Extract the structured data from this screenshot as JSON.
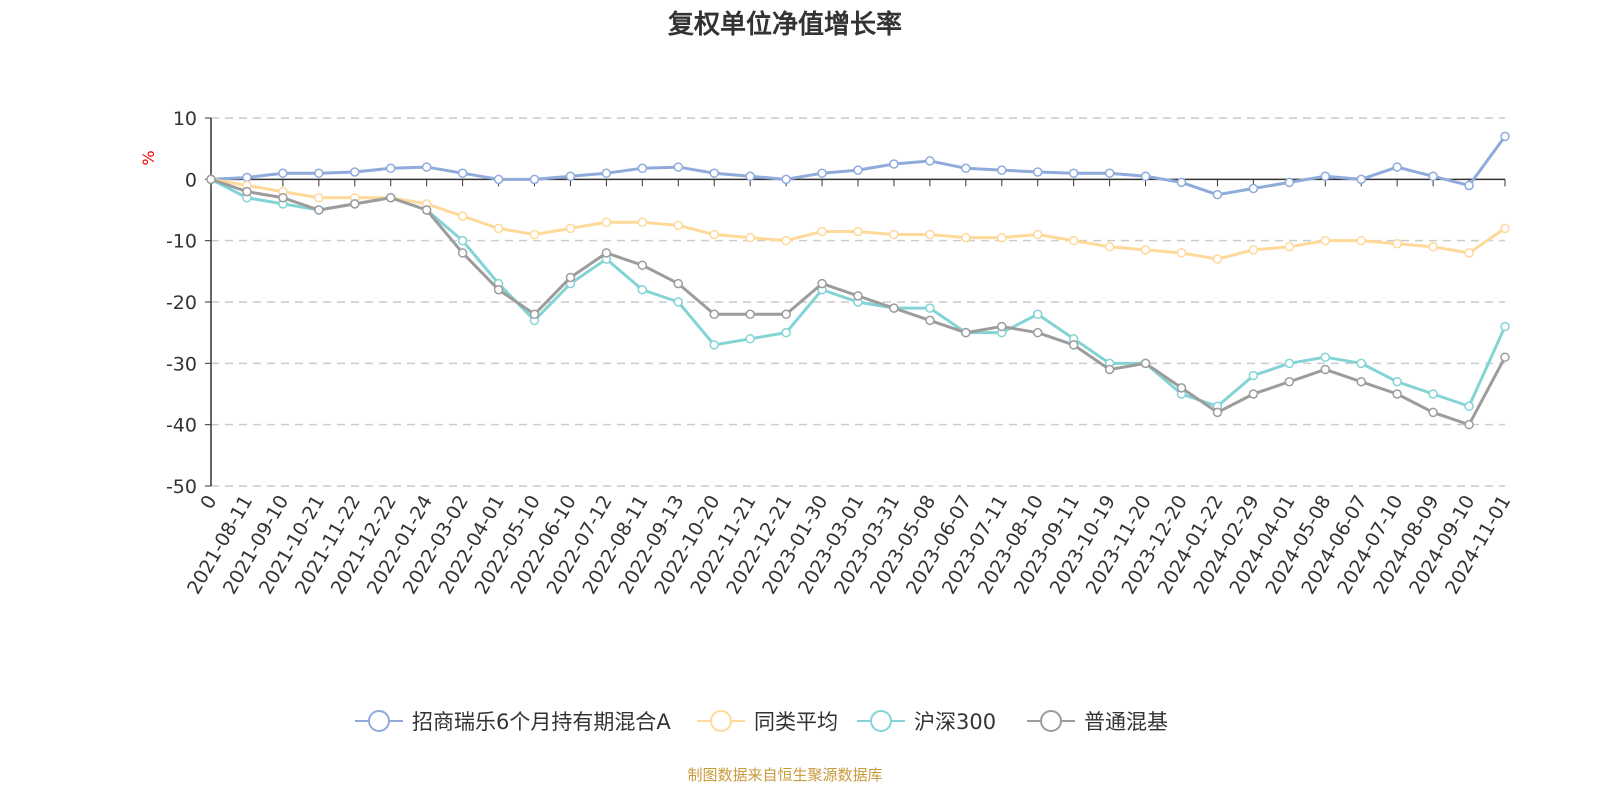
{
  "chart_data": {
    "type": "line",
    "title": "复权单位净值增长率",
    "ylabel": "%",
    "ylim": [
      -50,
      10
    ],
    "yticks": [
      10,
      0,
      -10,
      -20,
      -30,
      -40,
      -50
    ],
    "grid": true,
    "legend_position": "bottom",
    "x": [
      "0",
      "2021-08-11",
      "2021-09-10",
      "2021-10-21",
      "2021-11-22",
      "2021-12-22",
      "2022-01-24",
      "2022-03-02",
      "2022-04-01",
      "2022-05-10",
      "2022-06-10",
      "2022-07-12",
      "2022-08-11",
      "2022-09-13",
      "2022-10-20",
      "2022-11-21",
      "2022-12-21",
      "2023-01-30",
      "2023-03-01",
      "2023-03-31",
      "2023-05-08",
      "2023-06-07",
      "2023-07-11",
      "2023-08-10",
      "2023-09-11",
      "2023-10-19",
      "2023-11-20",
      "2023-12-20",
      "2024-01-22",
      "2024-02-29",
      "2024-04-01",
      "2024-05-08",
      "2024-06-07",
      "2024-07-10",
      "2024-08-09",
      "2024-09-10",
      "2024-11-01"
    ],
    "series": [
      {
        "name": "招商瑞乐6个月持有期混合A",
        "color": "#8eabdc",
        "values": [
          0,
          0.3,
          1,
          1,
          1.2,
          1.8,
          2,
          1,
          0,
          0,
          0.5,
          1,
          1.8,
          2,
          1,
          0.5,
          0,
          1,
          1.5,
          2.5,
          3,
          1.8,
          1.5,
          1.2,
          1,
          1,
          0.5,
          -0.5,
          -2.5,
          -1.5,
          -0.5,
          0.5,
          0,
          2,
          0.5,
          -1,
          7
        ]
      },
      {
        "name": "同类平均",
        "color": "#ffd99a",
        "values": [
          0,
          -1,
          -2,
          -3,
          -3,
          -3,
          -4,
          -6,
          -8,
          -9,
          -8,
          -7,
          -7,
          -7.5,
          -9,
          -9.5,
          -10,
          -8.5,
          -8.5,
          -9,
          -9,
          -9.5,
          -9.5,
          -9,
          -10,
          -11,
          -11.5,
          -12,
          -13,
          -11.5,
          -11,
          -10,
          -10,
          -10.5,
          -11,
          -12,
          -8
        ]
      },
      {
        "name": "沪深300",
        "color": "#84d4d6",
        "values": [
          0,
          -3,
          -4,
          -5,
          -4,
          -3,
          -5,
          -10,
          -17,
          -23,
          -17,
          -13,
          -18,
          -20,
          -27,
          -26,
          -25,
          -18,
          -20,
          -21,
          -21,
          -25,
          -25,
          -22,
          -26,
          -30,
          -30,
          -35,
          -37,
          -32,
          -30,
          -29,
          -30,
          -33,
          -35,
          -37,
          -24
        ]
      },
      {
        "name": "普通混基",
        "color": "#9c9c9c",
        "values": [
          0,
          -2,
          -3,
          -5,
          -4,
          -3,
          -5,
          -12,
          -18,
          -22,
          -16,
          -12,
          -14,
          -17,
          -22,
          -22,
          -22,
          -17,
          -19,
          -21,
          -23,
          -25,
          -24,
          -25,
          -27,
          -31,
          -30,
          -34,
          -38,
          -35,
          -33,
          -31,
          -33,
          -35,
          -38,
          -40,
          -29
        ]
      }
    ]
  },
  "source": "制图数据来自恒生聚源数据库"
}
